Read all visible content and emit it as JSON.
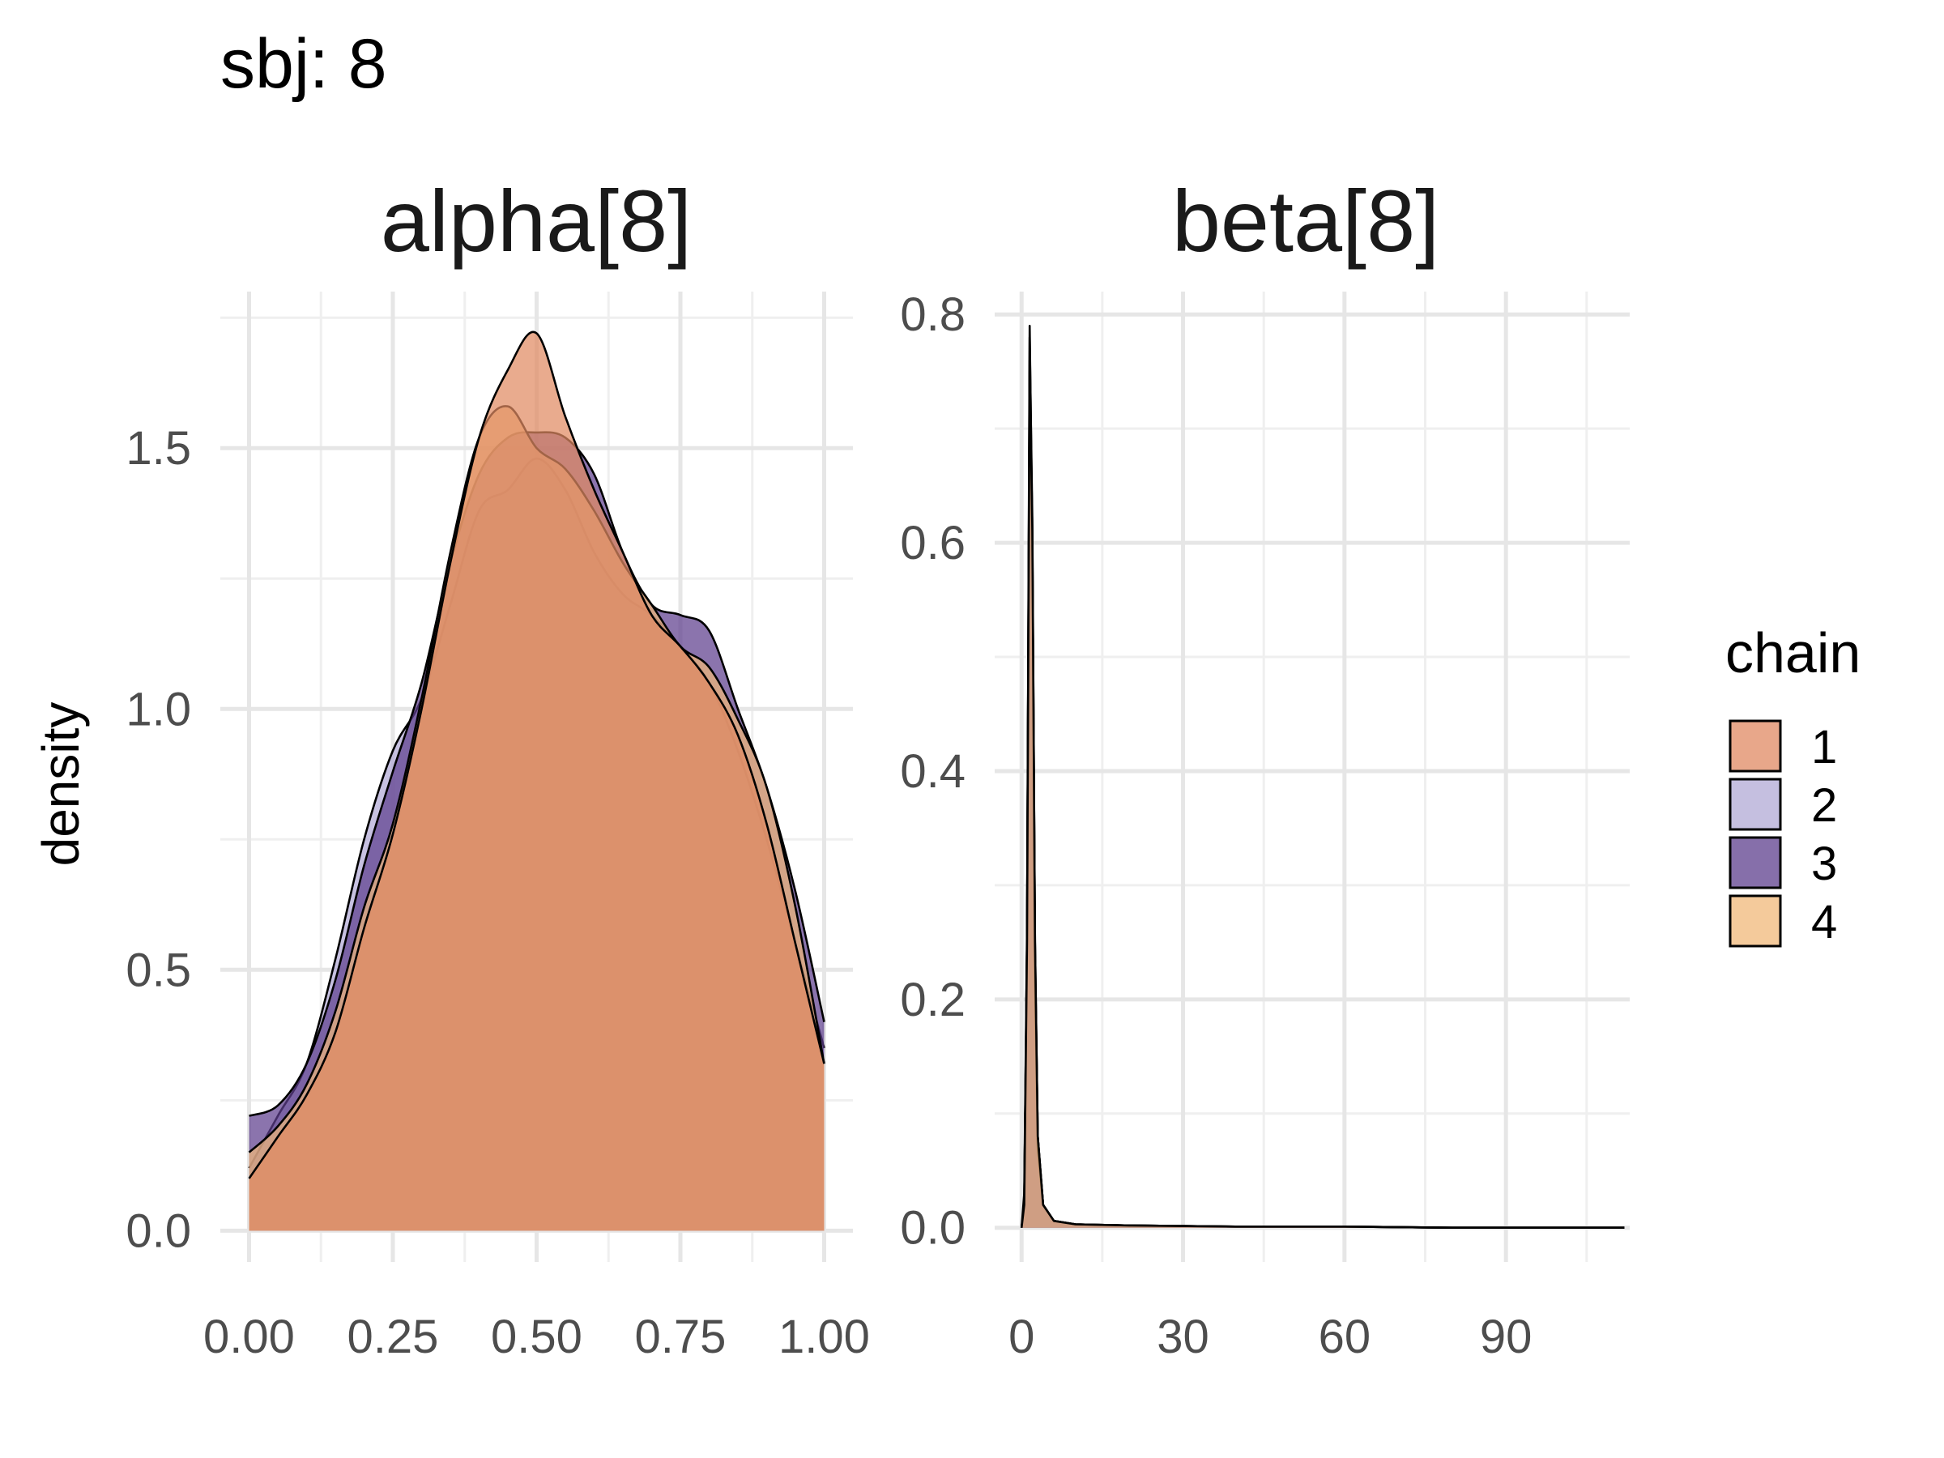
{
  "title": "sbj: 8",
  "colors": {
    "grid_major": "#e6e6e6",
    "grid_minor": "#efefef",
    "outline": "#000000",
    "chain_1": "#e08a63",
    "chain_2": "#b1a9d6",
    "chain_3": "#5e3f8e",
    "chain_4": "#f0b87a"
  },
  "legend": {
    "title": "chain",
    "position": "right",
    "items": [
      {
        "label": "1",
        "color": "#e08a63"
      },
      {
        "label": "2",
        "color": "#b1a9d6"
      },
      {
        "label": "3",
        "color": "#5e3f8e"
      },
      {
        "label": "4",
        "color": "#f0b87a"
      }
    ]
  },
  "chart_data": [
    {
      "type": "area",
      "title": "alpha[8]",
      "xlabel": "",
      "ylabel": "density",
      "xlim": [
        -0.05,
        1.05
      ],
      "ylim": [
        -0.06,
        1.8
      ],
      "x_ticks": [
        0,
        0.25,
        0.5,
        0.75,
        1.0
      ],
      "x_tick_labels": [
        "0.00",
        "0.25",
        "0.50",
        "0.75",
        "1.00"
      ],
      "y_ticks": [
        0,
        0.5,
        1.0,
        1.5
      ],
      "y_tick_labels": [
        "0.0",
        "0.5",
        "1.0",
        "1.5"
      ],
      "grid": true,
      "x": [
        0,
        0.05,
        0.1,
        0.15,
        0.2,
        0.25,
        0.3,
        0.35,
        0.4,
        0.45,
        0.5,
        0.55,
        0.6,
        0.65,
        0.7,
        0.75,
        0.8,
        0.85,
        0.9,
        0.95,
        1.0
      ],
      "series": [
        {
          "name": "2",
          "values": [
            0.12,
            0.22,
            0.32,
            0.52,
            0.75,
            0.92,
            1.02,
            1.2,
            1.38,
            1.42,
            1.48,
            1.42,
            1.3,
            1.22,
            1.18,
            1.12,
            1.05,
            0.92,
            0.75,
            0.55,
            0.35
          ]
        },
        {
          "name": "3",
          "values": [
            0.22,
            0.24,
            0.32,
            0.48,
            0.7,
            0.88,
            1.05,
            1.28,
            1.45,
            1.52,
            1.53,
            1.52,
            1.45,
            1.3,
            1.2,
            1.18,
            1.15,
            1.0,
            0.85,
            0.65,
            0.4
          ]
        },
        {
          "name": "4",
          "values": [
            0.15,
            0.2,
            0.28,
            0.42,
            0.62,
            0.78,
            1.02,
            1.3,
            1.52,
            1.58,
            1.5,
            1.46,
            1.38,
            1.28,
            1.2,
            1.12,
            1.08,
            0.98,
            0.85,
            0.62,
            0.32
          ]
        },
        {
          "name": "1",
          "values": [
            0.1,
            0.18,
            0.26,
            0.38,
            0.58,
            0.76,
            1.0,
            1.28,
            1.52,
            1.65,
            1.72,
            1.56,
            1.42,
            1.3,
            1.18,
            1.12,
            1.05,
            0.95,
            0.78,
            0.55,
            0.32
          ]
        }
      ]
    },
    {
      "type": "area",
      "title": "beta[8]",
      "xlabel": "",
      "ylabel": "density",
      "xlim": [
        -5,
        113
      ],
      "ylim": [
        -0.03,
        0.82
      ],
      "x_ticks": [
        0,
        30,
        60,
        90
      ],
      "x_tick_labels": [
        "0",
        "30",
        "60",
        "90"
      ],
      "y_ticks": [
        0,
        0.2,
        0.4,
        0.6,
        0.8
      ],
      "y_tick_labels": [
        "0.0",
        "0.2",
        "0.4",
        "0.6",
        "0.8"
      ],
      "grid": true,
      "x": [
        0,
        0.5,
        1,
        1.5,
        2,
        2.5,
        3,
        4,
        6,
        10,
        20,
        40,
        60,
        80,
        100,
        112
      ],
      "series": [
        {
          "name": "1",
          "values": [
            0.0,
            0.02,
            0.25,
            0.75,
            0.6,
            0.25,
            0.08,
            0.02,
            0.006,
            0.003,
            0.002,
            0.001,
            0.001,
            0.0,
            0.0,
            0.0
          ]
        },
        {
          "name": "2",
          "values": [
            0.0,
            0.02,
            0.24,
            0.78,
            0.62,
            0.24,
            0.08,
            0.02,
            0.006,
            0.003,
            0.002,
            0.001,
            0.001,
            0.0,
            0.0,
            0.0
          ]
        },
        {
          "name": "3",
          "values": [
            0.0,
            0.03,
            0.26,
            0.79,
            0.6,
            0.22,
            0.07,
            0.02,
            0.006,
            0.003,
            0.002,
            0.001,
            0.001,
            0.0,
            0.0,
            0.0
          ]
        },
        {
          "name": "4",
          "values": [
            0.0,
            0.02,
            0.25,
            0.76,
            0.61,
            0.25,
            0.08,
            0.02,
            0.006,
            0.003,
            0.002,
            0.001,
            0.001,
            0.0,
            0.0,
            0.0
          ]
        }
      ]
    }
  ]
}
